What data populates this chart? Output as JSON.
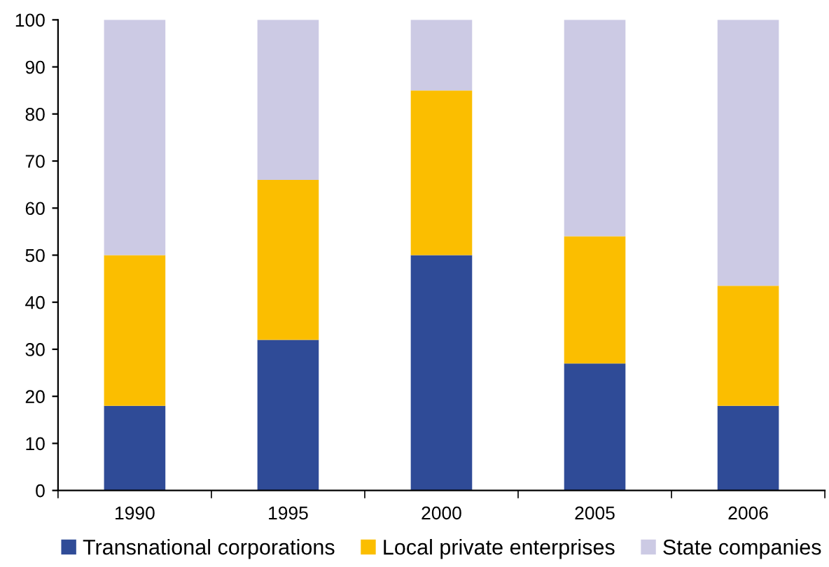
{
  "chart_data": {
    "type": "bar",
    "stacked": true,
    "categories": [
      "1990",
      "1995",
      "2000",
      "2005",
      "2006"
    ],
    "series": [
      {
        "name": "Transnational corporations",
        "color": "#2f4b97",
        "values": [
          18,
          32,
          50,
          27,
          18
        ]
      },
      {
        "name": "Local private enterprises",
        "color": "#fbbe00",
        "values": [
          32,
          34,
          35,
          27,
          25.5
        ]
      },
      {
        "name": "State companies",
        "color": "#cccae4",
        "values": [
          50,
          34,
          15,
          46,
          56.5
        ]
      }
    ],
    "ylim": [
      0,
      100
    ],
    "yticks": [
      0,
      10,
      20,
      30,
      40,
      50,
      60,
      70,
      80,
      90,
      100
    ],
    "grid": false,
    "legend": "bottom"
  }
}
